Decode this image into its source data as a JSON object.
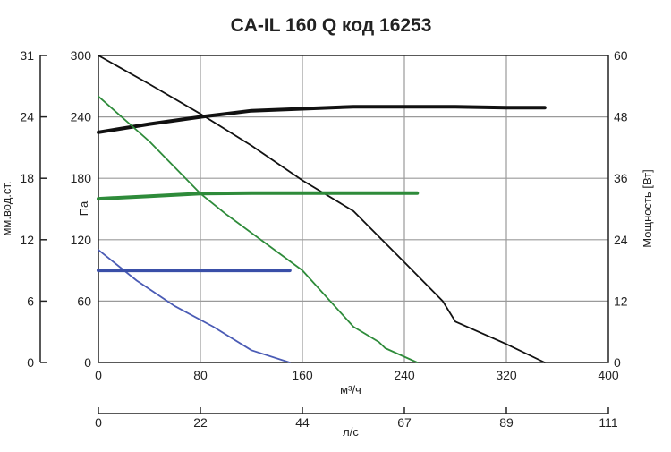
{
  "chart_data": {
    "type": "line",
    "title": "CA-IL 160 Q код 16253",
    "x_axis": {
      "label": "м³/ч",
      "range": [
        0,
        400
      ],
      "ticks": [
        "0",
        "80",
        "160",
        "240",
        "320",
        "400"
      ]
    },
    "x2_axis": {
      "label": "л/с",
      "ticks": [
        "0",
        "22",
        "44",
        "67",
        "89",
        "111"
      ]
    },
    "y_left_outer": {
      "label": "мм.вод.ст.",
      "ticks": [
        "0",
        "6",
        "12",
        "18",
        "24",
        "31"
      ]
    },
    "y_left": {
      "label": "Па",
      "range": [
        0,
        300
      ],
      "ticks": [
        "0",
        "60",
        "120",
        "180",
        "240",
        "300"
      ]
    },
    "y_right": {
      "label": "Мощность [Вт]",
      "range": [
        0,
        60
      ],
      "ticks": [
        "0",
        "12",
        "24",
        "36",
        "48",
        "60"
      ]
    },
    "grid": true,
    "series": [
      {
        "axis": "pressure",
        "color": "#111111",
        "kind": "pressure",
        "x": [
          0,
          40,
          80,
          120,
          160,
          200,
          240,
          270,
          280,
          320,
          350
        ],
        "y": [
          300,
          272,
          243,
          212,
          178,
          148,
          98,
          60,
          40,
          18,
          0
        ]
      },
      {
        "axis": "power",
        "color": "#111111",
        "kind": "power",
        "x": [
          0,
          40,
          80,
          120,
          160,
          200,
          240,
          280,
          320,
          350
        ],
        "y": [
          45,
          46.6,
          48,
          49.2,
          49.6,
          50,
          50,
          50,
          49.8,
          49.8
        ]
      },
      {
        "axis": "pressure",
        "color": "#2e8b3a",
        "kind": "pressure",
        "x": [
          0,
          40,
          80,
          100,
          160,
          200,
          220,
          225,
          250
        ],
        "y": [
          260,
          216,
          165,
          145,
          90,
          35,
          20,
          14,
          0
        ]
      },
      {
        "axis": "power",
        "color": "#2e8b3a",
        "kind": "power",
        "x": [
          0,
          40,
          80,
          120,
          160,
          200,
          250
        ],
        "y": [
          32,
          32.5,
          33,
          33.1,
          33.1,
          33.1,
          33.1
        ]
      },
      {
        "axis": "pressure",
        "color": "#4a5bb5",
        "kind": "pressure",
        "x": [
          0,
          30,
          60,
          90,
          120,
          150
        ],
        "y": [
          110,
          80,
          55,
          35,
          12,
          0
        ]
      },
      {
        "axis": "power",
        "color": "#3a4fa8",
        "kind": "power",
        "x": [
          0,
          150
        ],
        "y": [
          18,
          18
        ]
      }
    ]
  }
}
